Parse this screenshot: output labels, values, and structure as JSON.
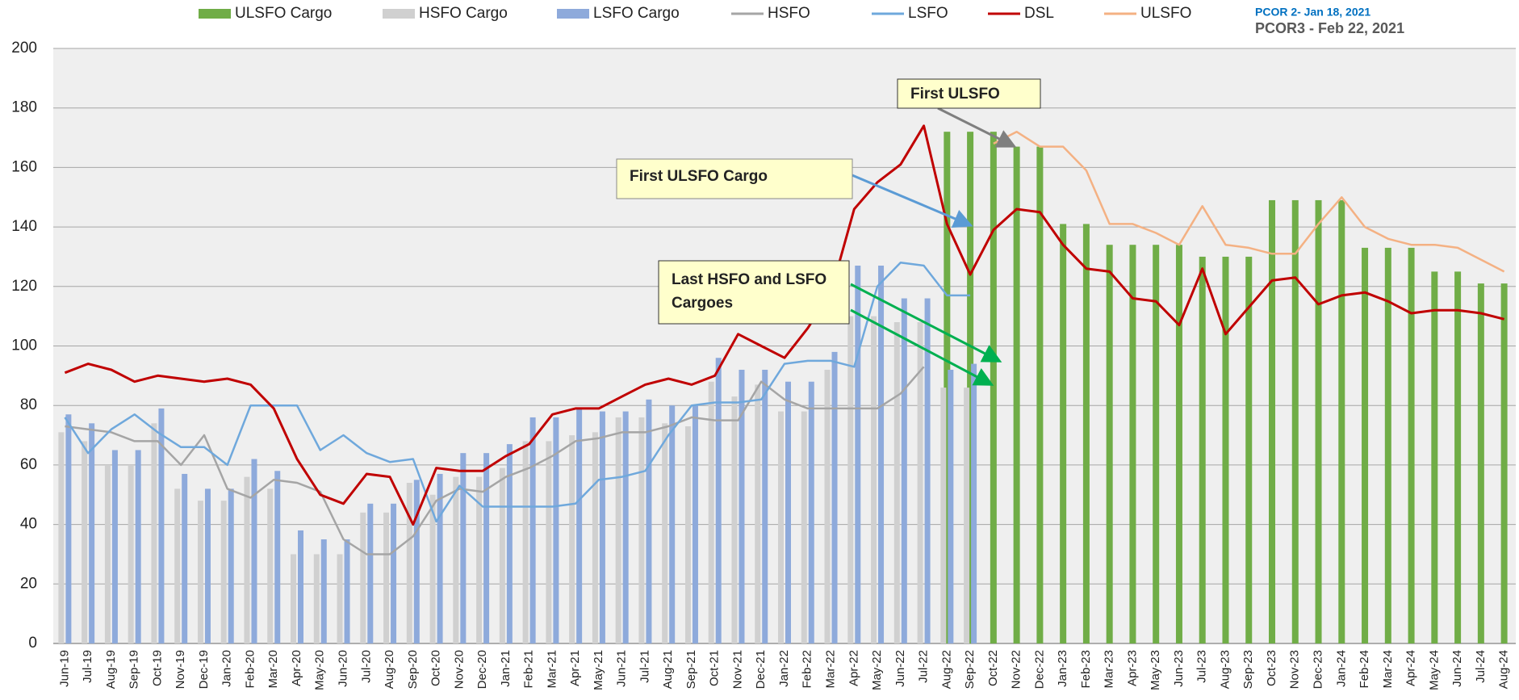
{
  "chart_data": {
    "type": "combo",
    "categories": [
      "Jun-19",
      "Jul-19",
      "Aug-19",
      "Sep-19",
      "Oct-19",
      "Nov-19",
      "Dec-19",
      "Jan-20",
      "Feb-20",
      "Mar-20",
      "Apr-20",
      "May-20",
      "Jun-20",
      "Jul-20",
      "Aug-20",
      "Sep-20",
      "Oct-20",
      "Nov-20",
      "Dec-20",
      "Jan-21",
      "Feb-21",
      "Mar-21",
      "Apr-21",
      "May-21",
      "Jun-21",
      "Jul-21",
      "Aug-21",
      "Sep-21",
      "Oct-21",
      "Nov-21",
      "Dec-21",
      "Jan-22",
      "Feb-22",
      "Mar-22",
      "Apr-22",
      "May-22",
      "Jun-22",
      "Jul-22",
      "Aug-22",
      "Sep-22",
      "Oct-22",
      "Nov-22",
      "Dec-22",
      "Jan-23",
      "Feb-23",
      "Mar-23",
      "Apr-23",
      "May-23",
      "Jun-23",
      "Jul-23",
      "Aug-23",
      "Sep-23",
      "Oct-23",
      "Nov-23",
      "Dec-23",
      "Jan-24",
      "Feb-24",
      "Mar-24",
      "Apr-24",
      "May-24",
      "Jun-24",
      "Jul-24",
      "Aug-24"
    ],
    "series": [
      {
        "name": "ULSFO Cargo",
        "type": "bar",
        "color": "#70ad47",
        "values": [
          null,
          null,
          null,
          null,
          null,
          null,
          null,
          null,
          null,
          null,
          null,
          null,
          null,
          null,
          null,
          null,
          null,
          null,
          null,
          null,
          null,
          null,
          null,
          null,
          null,
          null,
          null,
          null,
          null,
          null,
          null,
          null,
          null,
          null,
          null,
          null,
          null,
          null,
          172,
          172,
          172,
          167,
          167,
          141,
          141,
          134,
          134,
          134,
          134,
          130,
          130,
          130,
          149,
          149,
          149,
          149,
          133,
          133,
          133,
          125,
          125,
          121,
          121
        ]
      },
      {
        "name": "HSFO Cargo",
        "type": "bar",
        "color": "#d0d0d0",
        "values": [
          71,
          68,
          60,
          60,
          74,
          52,
          48,
          48,
          56,
          52,
          30,
          30,
          30,
          44,
          44,
          54,
          50,
          56,
          56,
          59,
          68,
          68,
          70,
          71,
          76,
          76,
          74,
          73,
          88,
          83,
          87,
          78,
          78,
          92,
          110,
          110,
          108,
          108,
          86,
          86,
          null,
          null,
          null,
          null,
          null,
          null,
          null,
          null,
          null,
          null,
          null,
          null,
          null,
          null,
          null,
          null,
          null,
          null,
          null,
          null,
          null,
          null,
          null
        ]
      },
      {
        "name": "LSFO Cargo",
        "type": "bar",
        "color": "#8eaadb",
        "values": [
          77,
          74,
          65,
          65,
          79,
          57,
          52,
          52,
          62,
          58,
          38,
          35,
          35,
          47,
          47,
          55,
          57,
          64,
          64,
          67,
          76,
          76,
          79,
          78,
          78,
          82,
          80,
          80,
          96,
          92,
          92,
          88,
          88,
          98,
          127,
          127,
          116,
          116,
          92,
          94,
          null,
          null,
          null,
          null,
          null,
          null,
          null,
          null,
          null,
          null,
          null,
          null,
          null,
          null,
          null,
          null,
          null,
          null,
          null,
          null,
          null,
          null,
          null
        ]
      },
      {
        "name": "HSFO",
        "type": "line",
        "color": "#a5a5a5",
        "values": [
          73,
          72,
          71,
          68,
          68,
          60,
          70,
          52,
          49,
          55,
          54,
          51,
          35,
          30,
          30,
          36,
          48,
          52,
          51,
          56,
          59,
          63,
          68,
          69,
          71,
          71,
          73,
          76,
          75,
          75,
          88,
          82,
          79,
          79,
          79,
          79,
          84,
          93,
          null,
          null,
          null,
          null,
          null,
          null,
          null,
          null,
          null,
          null,
          null,
          null,
          null,
          null,
          null,
          null,
          null,
          null,
          null,
          null,
          null,
          null,
          null,
          null,
          null
        ]
      },
      {
        "name": "LSFO",
        "type": "line",
        "color": "#6fa8dc",
        "values": [
          76,
          64,
          72,
          77,
          71,
          66,
          66,
          60,
          80,
          80,
          80,
          65,
          70,
          64,
          61,
          62,
          41,
          53,
          46,
          46,
          46,
          46,
          47,
          55,
          56,
          58,
          70,
          80,
          81,
          81,
          82,
          94,
          95,
          95,
          93,
          120,
          128,
          127,
          117,
          117,
          null,
          null,
          null,
          null,
          null,
          null,
          null,
          null,
          null,
          null,
          null,
          null,
          null,
          null,
          null,
          null,
          null,
          null,
          null,
          null,
          null,
          null,
          null
        ]
      },
      {
        "name": "DSL",
        "type": "line",
        "color": "#c00000",
        "values": [
          91,
          94,
          92,
          88,
          90,
          89,
          88,
          89,
          87,
          79,
          62,
          50,
          47,
          57,
          56,
          40,
          59,
          58,
          58,
          63,
          67,
          77,
          79,
          79,
          83,
          87,
          89,
          87,
          90,
          104,
          100,
          96,
          106,
          118,
          146,
          155,
          161,
          174,
          141,
          124,
          139,
          146,
          145,
          134,
          126,
          125,
          116,
          115,
          107,
          126,
          104,
          113,
          122,
          123,
          114,
          117,
          118,
          115,
          111,
          112,
          112,
          111,
          109
        ]
      },
      {
        "name": "ULSFO",
        "type": "line",
        "color": "#f4b183",
        "values": [
          null,
          null,
          null,
          null,
          null,
          null,
          null,
          null,
          null,
          null,
          null,
          null,
          null,
          null,
          null,
          null,
          null,
          null,
          null,
          null,
          null,
          null,
          null,
          null,
          null,
          null,
          null,
          null,
          null,
          null,
          null,
          null,
          null,
          null,
          null,
          null,
          null,
          null,
          null,
          null,
          168,
          172,
          167,
          167,
          159,
          141,
          141,
          138,
          134,
          147,
          134,
          133,
          131,
          131,
          141,
          150,
          140,
          136,
          134,
          134,
          133,
          129,
          125
        ]
      }
    ],
    "ylim": [
      0,
      200
    ],
    "yticks": [
      0,
      20,
      40,
      60,
      80,
      100,
      120,
      140,
      160,
      180,
      200
    ],
    "grid": true,
    "annotations": {
      "first_ulsfo": "First ULSFO",
      "first_ulsfo_cargo": "First ULSFO Cargo",
      "last_cargoes": [
        "Last HSFO and LSFO",
        "Cargoes"
      ],
      "pcor2": "PCOR 2- Jan 18, 2021",
      "pcor3": "PCOR3 - Feb 22, 2021"
    }
  }
}
